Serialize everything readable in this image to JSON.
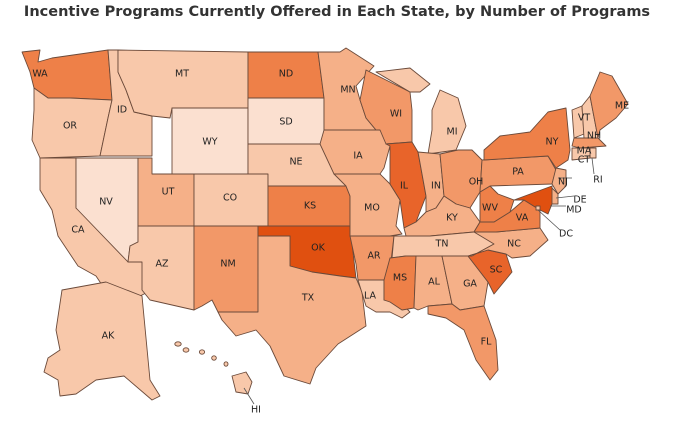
{
  "title": "Incentive Programs Currently Offered in Each State, by Number of Programs",
  "colors": {
    "level1": "#fbe0d0",
    "level2": "#f8c8aa",
    "level3": "#f5b088",
    "level4": "#f29868",
    "level5": "#ee8048",
    "level6": "#e8642a",
    "level7": "#e05010",
    "border": "#6b4a3a"
  },
  "states": [
    {
      "abbr": "WA",
      "level": 5
    },
    {
      "abbr": "OR",
      "level": 2
    },
    {
      "abbr": "CA",
      "level": 2
    },
    {
      "abbr": "NV",
      "level": 1
    },
    {
      "abbr": "ID",
      "level": 2
    },
    {
      "abbr": "MT",
      "level": 2
    },
    {
      "abbr": "WY",
      "level": 1
    },
    {
      "abbr": "UT",
      "level": 3
    },
    {
      "abbr": "AZ",
      "level": 2
    },
    {
      "abbr": "CO",
      "level": 2
    },
    {
      "abbr": "NM",
      "level": 4
    },
    {
      "abbr": "ND",
      "level": 5
    },
    {
      "abbr": "SD",
      "level": 1
    },
    {
      "abbr": "NE",
      "level": 2
    },
    {
      "abbr": "KS",
      "level": 5
    },
    {
      "abbr": "OK",
      "level": 7
    },
    {
      "abbr": "TX",
      "level": 3
    },
    {
      "abbr": "MN",
      "level": 3
    },
    {
      "abbr": "IA",
      "level": 3
    },
    {
      "abbr": "MO",
      "level": 3
    },
    {
      "abbr": "AR",
      "level": 4
    },
    {
      "abbr": "LA",
      "level": 2
    },
    {
      "abbr": "WI",
      "level": 4
    },
    {
      "abbr": "IL",
      "level": 6
    },
    {
      "abbr": "MI",
      "level": 2
    },
    {
      "abbr": "IN",
      "level": 3
    },
    {
      "abbr": "OH",
      "level": 4
    },
    {
      "abbr": "KY",
      "level": 3
    },
    {
      "abbr": "TN",
      "level": 2
    },
    {
      "abbr": "MS",
      "level": 5
    },
    {
      "abbr": "AL",
      "level": 3
    },
    {
      "abbr": "GA",
      "level": 3
    },
    {
      "abbr": "FL",
      "level": 4
    },
    {
      "abbr": "SC",
      "level": 6
    },
    {
      "abbr": "NC",
      "level": 3
    },
    {
      "abbr": "VA",
      "level": 5
    },
    {
      "abbr": "WV",
      "level": 5
    },
    {
      "abbr": "PA",
      "level": 4
    },
    {
      "abbr": "NY",
      "level": 5
    },
    {
      "abbr": "VT",
      "level": 2
    },
    {
      "abbr": "NH",
      "level": 2
    },
    {
      "abbr": "ME",
      "level": 4
    },
    {
      "abbr": "MA",
      "level": 4
    },
    {
      "abbr": "RI",
      "level": 2
    },
    {
      "abbr": "CT",
      "level": 2
    },
    {
      "abbr": "NJ",
      "level": 3
    },
    {
      "abbr": "DE",
      "level": 3
    },
    {
      "abbr": "MD",
      "level": 7
    },
    {
      "abbr": "DC",
      "level": 2
    },
    {
      "abbr": "AK",
      "level": 2
    },
    {
      "abbr": "HI",
      "level": 2
    }
  ]
}
